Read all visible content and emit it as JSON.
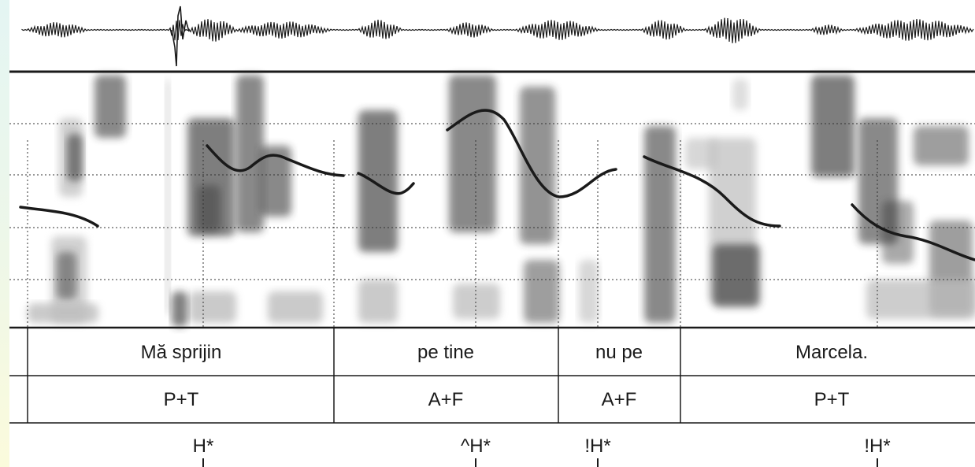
{
  "words_tier": [
    {
      "label": "Mă sprijin"
    },
    {
      "label": "pe tine"
    },
    {
      "label": "nu pe"
    },
    {
      "label": "Marcela."
    }
  ],
  "phrase_tier": [
    {
      "label": "P+T"
    },
    {
      "label": "A+F"
    },
    {
      "label": "A+F"
    },
    {
      "label": "P+T"
    }
  ],
  "tones_tier": [
    {
      "label": "H*"
    },
    {
      "label": "^H*"
    },
    {
      "label": "!H*"
    },
    {
      "label": "!H*"
    }
  ],
  "colors": {
    "ink": "#1a1a1a",
    "spectrogram_dark": "#2b2b2b",
    "spectrogram_light": "#bdbdbd",
    "strip_top": "#e4f5f3",
    "strip_bottom": "#fbfbdc"
  }
}
